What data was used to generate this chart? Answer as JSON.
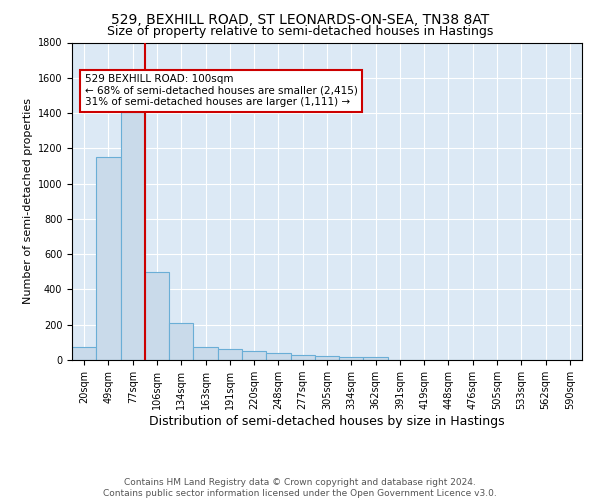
{
  "title": "529, BEXHILL ROAD, ST LEONARDS-ON-SEA, TN38 8AT",
  "subtitle": "Size of property relative to semi-detached houses in Hastings",
  "xlabel": "Distribution of semi-detached houses by size in Hastings",
  "ylabel": "Number of semi-detached properties",
  "bar_labels": [
    "20sqm",
    "49sqm",
    "77sqm",
    "106sqm",
    "134sqm",
    "163sqm",
    "191sqm",
    "220sqm",
    "248sqm",
    "277sqm",
    "305sqm",
    "334sqm",
    "362sqm",
    "391sqm",
    "419sqm",
    "448sqm",
    "476sqm",
    "505sqm",
    "533sqm",
    "562sqm",
    "590sqm"
  ],
  "bar_values": [
    75,
    1150,
    1430,
    500,
    210,
    75,
    65,
    52,
    42,
    30,
    20,
    15,
    15,
    0,
    0,
    0,
    0,
    0,
    0,
    0,
    0
  ],
  "bar_color": "#c9daea",
  "bar_edge_color": "#6aaed6",
  "property_line_index": 2.5,
  "property_line_color": "#cc0000",
  "annotation_text": "529 BEXHILL ROAD: 100sqm\n← 68% of semi-detached houses are smaller (2,415)\n31% of semi-detached houses are larger (1,111) →",
  "annotation_box_color": "#cc0000",
  "ylim": [
    0,
    1800
  ],
  "yticks": [
    0,
    200,
    400,
    600,
    800,
    1000,
    1200,
    1400,
    1600,
    1800
  ],
  "footer": "Contains HM Land Registry data © Crown copyright and database right 2024.\nContains public sector information licensed under the Open Government Licence v3.0.",
  "title_fontsize": 10,
  "subtitle_fontsize": 9,
  "xlabel_fontsize": 9,
  "ylabel_fontsize": 8,
  "tick_fontsize": 7,
  "annotation_fontsize": 7.5,
  "footer_fontsize": 6.5
}
